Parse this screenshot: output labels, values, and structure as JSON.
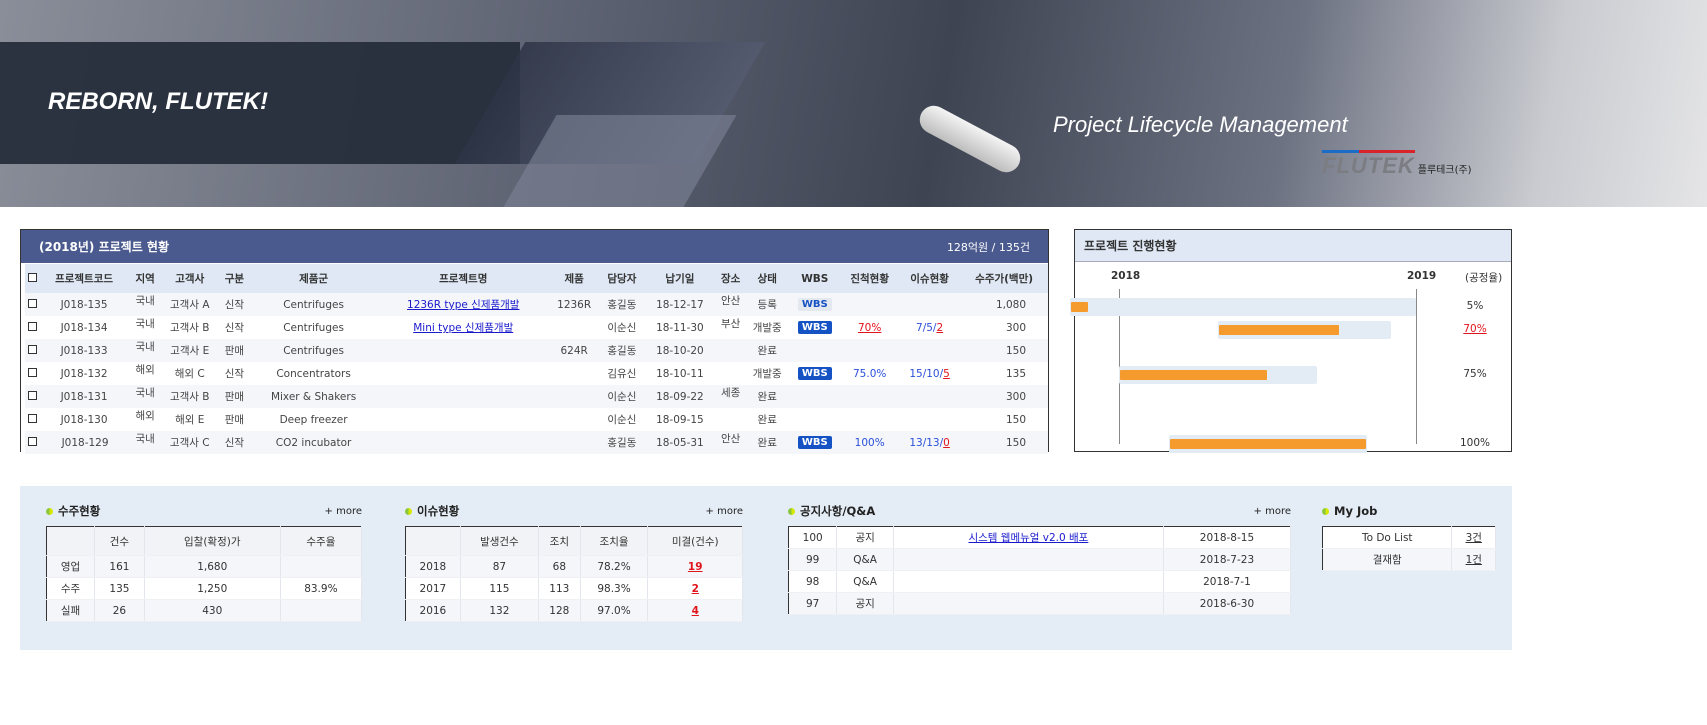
{
  "banner": {
    "slogan": "REBORN, FLUTEK!",
    "subtitle": "Project Lifecycle Management",
    "logo_mark": "FLUTEK",
    "logo_korean": "플루테크(주)"
  },
  "project_table": {
    "title": "(2018년) 프로젝트 현황",
    "summary": "128억원 / 135건",
    "columns": [
      "프로젝트코드",
      "지역",
      "고객사",
      "구분",
      "제품군",
      "프로젝트명",
      "제품",
      "담당자",
      "납기일",
      "장소",
      "상태",
      "WBS",
      "진척현황",
      "이슈현황",
      "수주가(백만)"
    ],
    "rows": [
      {
        "code": "J018-135",
        "region": "국내",
        "customer": "고객사 A",
        "type": "신작",
        "group": "Centrifuges",
        "name": "1236R type 신제품개발",
        "product": "1236R",
        "owner": "홍길동",
        "due": "18-12-17",
        "place": "안산",
        "status": "등록",
        "wbs": "WBS",
        "wbs_state": "inactive",
        "progress": "",
        "issue_a": "",
        "issue_b": "",
        "amount": "1,080"
      },
      {
        "code": "J018-134",
        "region": "국내",
        "customer": "고객사 B",
        "type": "신작",
        "group": "Centrifuges",
        "name": "Mini type 신제품개발",
        "product": "",
        "owner": "이순신",
        "due": "18-11-30",
        "place": "부산",
        "status": "개발중",
        "wbs": "WBS",
        "wbs_state": "active",
        "progress": "70%",
        "progress_alert": true,
        "issue_a": "7/5/",
        "issue_b": "2",
        "amount": "300"
      },
      {
        "code": "J018-133",
        "region": "국내",
        "customer": "고객사 E",
        "type": "판매",
        "group": "Centrifuges",
        "name": "",
        "product": "624R",
        "owner": "홍길동",
        "due": "18-10-20",
        "place": "",
        "status": "완료",
        "wbs": "",
        "progress": "",
        "issue_a": "",
        "issue_b": "",
        "amount": "150"
      },
      {
        "code": "J018-132",
        "region": "해외",
        "customer": "해외 C",
        "type": "신작",
        "group": "Concentrators",
        "name": "",
        "product": "",
        "owner": "김유신",
        "due": "18-10-11",
        "place": "",
        "status": "개발중",
        "wbs": "WBS",
        "wbs_state": "active",
        "progress": "75.0%",
        "issue_a": "15/10/",
        "issue_b": "5",
        "amount": "135"
      },
      {
        "code": "J018-131",
        "region": "국내",
        "customer": "고객사 B",
        "type": "판매",
        "group": "Mixer & Shakers",
        "name": "",
        "product": "",
        "owner": "이순신",
        "due": "18-09-22",
        "place": "세종",
        "status": "완료",
        "wbs": "",
        "progress": "",
        "issue_a": "",
        "issue_b": "",
        "amount": "300"
      },
      {
        "code": "J018-130",
        "region": "해외",
        "customer": "해외 E",
        "type": "판매",
        "group": "Deep freezer",
        "name": "",
        "product": "",
        "owner": "이순신",
        "due": "18-09-15",
        "place": "",
        "status": "완료",
        "wbs": "",
        "progress": "",
        "issue_a": "",
        "issue_b": "",
        "amount": "150"
      },
      {
        "code": "J018-129",
        "region": "국내",
        "customer": "고객사 C",
        "type": "신작",
        "group": "CO2 incubator",
        "name": "",
        "product": "",
        "owner": "홍길동",
        "due": "18-05-31",
        "place": "안산",
        "status": "완료",
        "wbs": "WBS",
        "wbs_state": "active",
        "progress": "100%",
        "issue_a": "13/13/",
        "issue_b": "0",
        "amount": "150"
      }
    ]
  },
  "gantt": {
    "title": "프로젝트 진행현황",
    "year_start": "2018",
    "year_end": "2019",
    "rate_label": "(공정율)",
    "colors": {
      "fill": "#f59a2c",
      "track": "#e3ebf5"
    },
    "rows": [
      {
        "row": 0,
        "start": "2017-11",
        "end": "2019-01",
        "progress": 5,
        "label": "5%",
        "alert": false
      },
      {
        "row": 1,
        "start": "2018-05",
        "end": "2018-12",
        "progress": 70,
        "label": "70%",
        "alert": true
      },
      {
        "row": 3,
        "start": "2018-01",
        "end": "2018-09",
        "progress": 75,
        "label": "75%",
        "alert": false
      },
      {
        "row": 6,
        "start": "2018-03",
        "end": "2018-11",
        "progress": 100,
        "label": "100%",
        "alert": false
      }
    ]
  },
  "orders": {
    "title": "수주현황",
    "more": "+ more",
    "columns": [
      "",
      "건수",
      "입찰(확정)가",
      "수주율"
    ],
    "rows": [
      [
        "영업",
        "161",
        "1,680"
      ],
      [
        "수주",
        "135",
        "1,250"
      ],
      [
        "실패",
        "26",
        "430"
      ]
    ],
    "rate": "83.9%"
  },
  "issues": {
    "title": "이슈현황",
    "more": "+ more",
    "columns": [
      "",
      "발생건수",
      "조치",
      "조치율",
      "미결(건수)"
    ],
    "rows": [
      [
        "2018",
        "87",
        "68",
        "78.2%",
        "19"
      ],
      [
        "2017",
        "115",
        "113",
        "98.3%",
        "2"
      ],
      [
        "2016",
        "132",
        "128",
        "97.0%",
        "4"
      ]
    ]
  },
  "notice": {
    "title": "공지사항/Q&A",
    "more": "+ more",
    "rows": [
      [
        "100",
        "공지",
        "시스템 웹메뉴얼 v2.0 배포",
        "2018-8-15"
      ],
      [
        "99",
        "Q&A",
        "",
        "2018-7-23"
      ],
      [
        "98",
        "Q&A",
        "",
        "2018-7-1"
      ],
      [
        "97",
        "공지",
        "",
        "2018-6-30"
      ]
    ]
  },
  "myjob": {
    "title": "My Job",
    "rows": [
      [
        "To Do List",
        "3건"
      ],
      [
        "결재함",
        "1건"
      ]
    ]
  }
}
